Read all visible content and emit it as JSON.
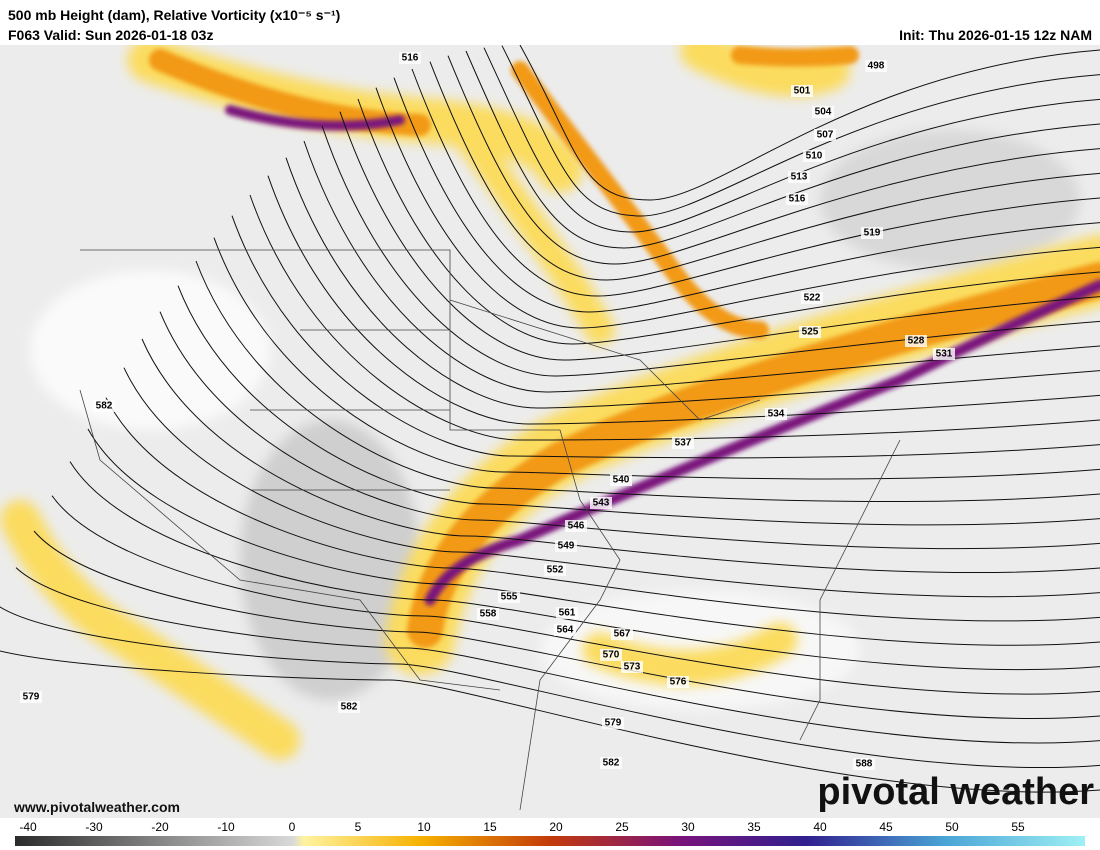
{
  "header": {
    "title": "500 mb Height (dam), Relative Vorticity (x10⁻⁵ s⁻¹)",
    "valid": "F063 Valid: Sun 2026-01-18 03z",
    "init": "Init: Thu 2026-01-15 12z NAM"
  },
  "contour_labels": [
    516,
    498,
    501,
    504,
    507,
    510,
    513,
    516,
    519,
    522,
    525,
    528,
    531,
    534,
    537,
    540,
    543,
    546,
    549,
    552,
    555,
    558,
    561,
    564,
    567,
    570,
    573,
    576,
    579,
    582,
    582,
    579,
    582,
    588
  ],
  "colorbar": {
    "ticks": [
      -40,
      -30,
      -20,
      -10,
      0,
      5,
      10,
      15,
      20,
      25,
      30,
      35,
      40,
      45,
      50,
      55
    ]
  },
  "footer": {
    "website": "www.pivotalweather.com",
    "watermark": "pivotal weather"
  }
}
